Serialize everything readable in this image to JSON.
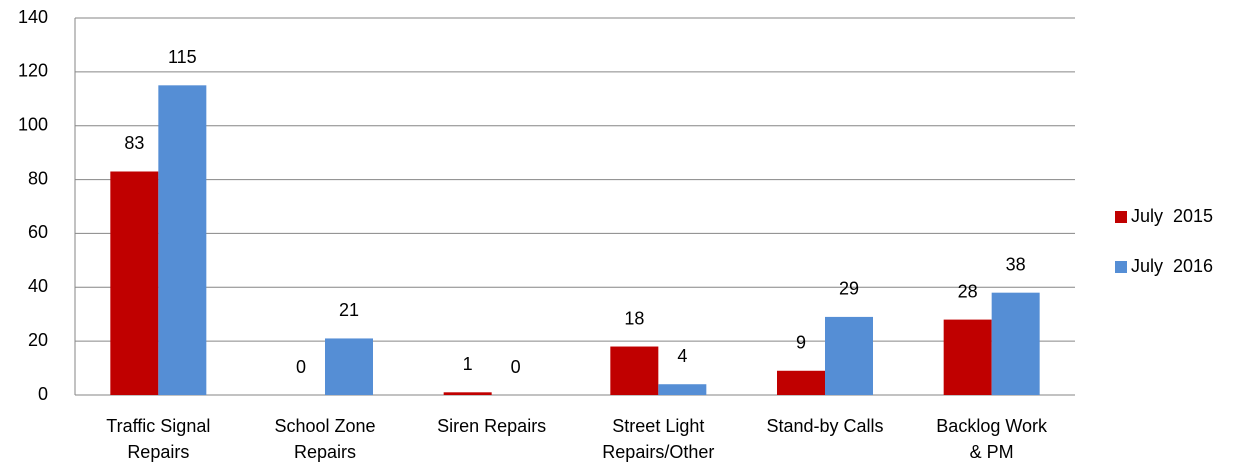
{
  "chart_data": {
    "type": "bar",
    "categories": [
      [
        "Traffic Signal",
        "Repairs"
      ],
      [
        "School Zone",
        "Repairs"
      ],
      [
        "Siren Repairs"
      ],
      [
        "Street Light",
        "Repairs/Other"
      ],
      [
        "Stand-by Calls"
      ],
      [
        "Backlog Work",
        "& PM"
      ]
    ],
    "series": [
      {
        "name": "July  2015",
        "color": "#c00000",
        "values": [
          83,
          0,
          1,
          18,
          9,
          28
        ]
      },
      {
        "name": "July  2016",
        "color": "#558ed5",
        "values": [
          115,
          21,
          0,
          4,
          29,
          38
        ]
      }
    ],
    "ylim": [
      0,
      140
    ],
    "yticks": [
      0,
      20,
      40,
      60,
      80,
      100,
      120,
      140
    ],
    "grid": true,
    "legend": "right"
  }
}
